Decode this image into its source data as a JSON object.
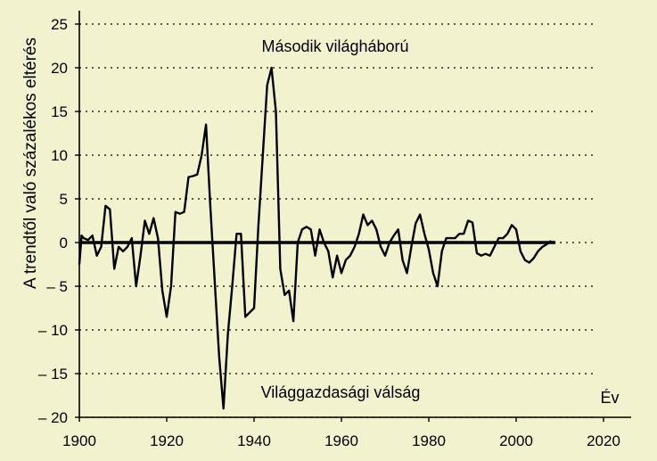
{
  "colors": {
    "background": "#f2f2ce",
    "line": "#000000",
    "grid": "#000000"
  },
  "chart_data": {
    "type": "line",
    "title": "",
    "xlabel": "Év",
    "ylabel": "A trendtől való százalékos eltérés",
    "xlim": [
      1900,
      2026
    ],
    "ylim": [
      -20,
      26
    ],
    "xticks": [
      1900,
      1920,
      1940,
      1960,
      1980,
      2000,
      2020
    ],
    "yticks": [
      25,
      20,
      15,
      10,
      5,
      0,
      -5,
      -10,
      -15,
      -20
    ],
    "xtick_labels": [
      "1900",
      "1920",
      "1940",
      "1960",
      "1980",
      "2000",
      "2020"
    ],
    "ytick_labels": [
      "25",
      "20",
      "15",
      "10",
      "5",
      "0",
      "– 5",
      "– 10",
      "– 15",
      "– 20"
    ],
    "grid": "horizontal dotted",
    "trend_line": {
      "x": [
        1900,
        2009
      ],
      "y": [
        0,
        0
      ]
    },
    "annotations": [
      {
        "text": "Második világháború",
        "x": 1944,
        "y": 21.5
      },
      {
        "text": "Világgazdasági válság",
        "x": 1932,
        "y": -17
      }
    ],
    "series": [
      {
        "x": [
          1900,
          1900.5,
          1901,
          1902,
          1903,
          1904,
          1905,
          1906,
          1907,
          1908,
          1909,
          1910,
          1911,
          1912,
          1913,
          1914,
          1915,
          1916,
          1917,
          1918,
          1919,
          1920,
          1921,
          1922,
          1923,
          1924,
          1925,
          1926,
          1927,
          1928,
          1929,
          1930,
          1931,
          1932,
          1933,
          1934,
          1935,
          1936,
          1937,
          1938,
          1939,
          1940,
          1941,
          1942,
          1943,
          1944,
          1945,
          1946,
          1947,
          1948,
          1949,
          1950,
          1951,
          1952,
          1953,
          1954,
          1955,
          1956,
          1957,
          1958,
          1959,
          1960,
          1961,
          1962,
          1963,
          1964,
          1965,
          1966,
          1967,
          1968,
          1969,
          1970,
          1971,
          1972,
          1973,
          1974,
          1975,
          1976,
          1977,
          1978,
          1979,
          1980,
          1981,
          1982,
          1983,
          1984,
          1985,
          1986,
          1987,
          1988,
          1989,
          1990,
          1991,
          1992,
          1993,
          1994,
          1995,
          1996,
          1997,
          1998,
          1999,
          2000,
          2001,
          2002,
          2003,
          2004,
          2005,
          2006,
          2007,
          2008
        ],
        "y": [
          -2.5,
          0.8,
          0.5,
          0.3,
          0.8,
          -1.5,
          -0.5,
          4.2,
          3.8,
          -3,
          -0.5,
          -1,
          -0.5,
          0.5,
          -5,
          -1.5,
          2.5,
          1,
          2.8,
          0.5,
          -5.5,
          -8.5,
          -5,
          3.5,
          3.3,
          3.5,
          7.5,
          7.6,
          7.8,
          10,
          13.5,
          4,
          -4.5,
          -13,
          -19,
          -10.5,
          -5,
          1,
          1,
          -8.5,
          -8,
          -7.5,
          2,
          10,
          18,
          20,
          15,
          -3,
          -6,
          -5.5,
          -9,
          0,
          1.5,
          1.8,
          1.5,
          -1.5,
          1.5,
          0,
          -1,
          -4,
          -1.5,
          -3.5,
          -2,
          -1.5,
          -0.5,
          1,
          3.2,
          2,
          2.5,
          1.5,
          -0.5,
          -1.5,
          0,
          0.8,
          1.5,
          -2,
          -3.5,
          -0.5,
          2.2,
          3.2,
          1,
          -0.8,
          -3.5,
          -5,
          -1,
          0.5,
          0.5,
          0.5,
          1,
          1,
          2.5,
          2.3,
          -1.2,
          -1.5,
          -1.3,
          -1.5,
          -0.5,
          0.5,
          0.5,
          1,
          2,
          1.5,
          -1,
          -2,
          -2.3,
          -1.8,
          -1,
          -0.5,
          -0.2,
          0.2
        ]
      }
    ]
  }
}
